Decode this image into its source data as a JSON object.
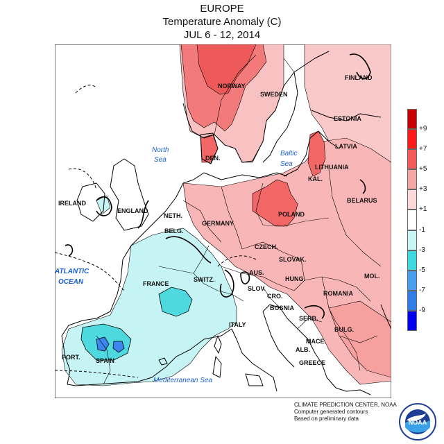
{
  "title": {
    "line1": "EUROPE",
    "line2": "Temperature Anomaly (C)",
    "line3": "JUL 6 - 12, 2014"
  },
  "map": {
    "countries": [
      "NORWAY",
      "SWEDEN",
      "FINLAND",
      "ESTONIA",
      "LATVIA",
      "LITHUANIA",
      "DEN.",
      "KAL.",
      "BELARUS",
      "IRELAND",
      "ENGLAND",
      "NETH.",
      "BELG.",
      "GERMANY",
      "POLAND",
      "CZECH.",
      "SLOVAK.",
      "FRANCE",
      "SWITZ.",
      "AUS.",
      "HUNG.",
      "MOL.",
      "ROMANIA",
      "SLOV.",
      "CRO.",
      "BOSNIA",
      "SERB.",
      "BULG.",
      "ITALY",
      "MACE.",
      "ALB.",
      "GREECE",
      "PORT.",
      "SPAIN"
    ],
    "seas": [
      "North Sea",
      "Baltic Sea",
      "ATLANTIC OCEAN",
      "Mediterranean Sea"
    ],
    "sea_label_color": "#1a5fd1",
    "land_color": "#ffffff",
    "border_color": "#000000"
  },
  "legend": {
    "labels": [
      "+9",
      "+7",
      "+5",
      "+3",
      "+1",
      "-1",
      "-3",
      "-5",
      "-7",
      "-9"
    ],
    "colors": [
      "#c80000",
      "#ff1a1a",
      "#f25a5a",
      "#f7a6a6",
      "#fcd9d9",
      "#ffffff",
      "#c8f5f5",
      "#3fd8df",
      "#4a9ef0",
      "#2f7ee8",
      "#0000ee"
    ]
  },
  "credit": {
    "line1": "CLIMATE PREDICTION CENTER, NOAA",
    "line2": "Computer generated contours",
    "line3": "Based on preliminary data"
  },
  "logo": {
    "text": "NOAA"
  }
}
